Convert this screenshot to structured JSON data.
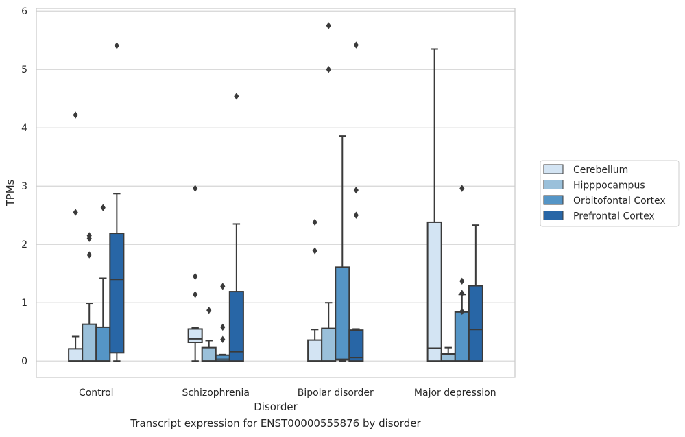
{
  "chart_data": {
    "type": "boxplot",
    "title": "",
    "caption": "Transcript expression for ENST00000555876 by disorder",
    "xlabel": "Disorder",
    "ylabel": "TPMs",
    "ylim": [
      -0.28,
      6.05
    ],
    "yticks": [
      0,
      1,
      2,
      3,
      4,
      5,
      6
    ],
    "grid": true,
    "legend_position": "right",
    "categories": [
      "Control",
      "Schizophrenia",
      "Bipolar disorder",
      "Major depression"
    ],
    "series": [
      {
        "name": "Cerebellum",
        "color": "#d3e4f3",
        "boxes": [
          {
            "whisker_low": 0,
            "q1": 0,
            "median": 0,
            "q3": 0.21,
            "whisker_high": 0.42,
            "outliers": [
              2.55,
              4.22
            ]
          },
          {
            "whisker_low": 0,
            "q1": 0.32,
            "median": 0.38,
            "q3": 0.55,
            "whisker_high": 0.57,
            "outliers": [
              1.14,
              1.45,
              2.96
            ]
          },
          {
            "whisker_low": 0,
            "q1": 0,
            "median": 0,
            "q3": 0.36,
            "whisker_high": 0.54,
            "outliers": [
              1.89,
              2.38
            ]
          },
          {
            "whisker_low": 0,
            "q1": 0,
            "median": 0.22,
            "q3": 2.38,
            "whisker_high": 5.35,
            "outliers": []
          }
        ]
      },
      {
        "name": "Hipppocampus",
        "color": "#9ac0da",
        "boxes": [
          {
            "whisker_low": 0,
            "q1": 0,
            "median": 0,
            "q3": 0.63,
            "whisker_high": 0.99,
            "outliers": [
              1.82,
              2.1,
              2.15
            ]
          },
          {
            "whisker_low": 0,
            "q1": 0,
            "median": 0,
            "q3": 0.23,
            "whisker_high": 0.35,
            "outliers": [
              0.87
            ]
          },
          {
            "whisker_low": 0,
            "q1": 0,
            "median": 0,
            "q3": 0.56,
            "whisker_high": 1.0,
            "outliers": [
              5.0,
              5.75
            ]
          },
          {
            "whisker_low": 0,
            "q1": 0,
            "median": 0,
            "q3": 0.12,
            "whisker_high": 0.23,
            "outliers": []
          }
        ]
      },
      {
        "name": "Orbitofontal Cortex",
        "color": "#5595c6",
        "boxes": [
          {
            "whisker_low": 0,
            "q1": 0,
            "median": 0,
            "q3": 0.58,
            "whisker_high": 1.42,
            "outliers": [
              2.63
            ]
          },
          {
            "whisker_low": 0,
            "q1": 0,
            "median": 0.03,
            "q3": 0.1,
            "whisker_high": 0.11,
            "outliers": [
              0.37,
              0.58,
              1.28
            ]
          },
          {
            "whisker_low": 0,
            "q1": 0.02,
            "median": 0.03,
            "q3": 1.61,
            "whisker_high": 3.86,
            "outliers": []
          },
          {
            "whisker_low": 0,
            "q1": 0,
            "median": 0,
            "q3": 0.84,
            "whisker_high": 1.14,
            "outliers": [
              0.85,
              1.16,
              1.37,
              2.96
            ]
          }
        ]
      },
      {
        "name": "Prefrontal Cortex",
        "color": "#2866a6",
        "boxes": [
          {
            "whisker_low": 0,
            "q1": 0.14,
            "median": 1.4,
            "q3": 2.19,
            "whisker_high": 2.87,
            "outliers": [
              5.41
            ]
          },
          {
            "whisker_low": 0,
            "q1": 0,
            "median": 0.16,
            "q3": 1.19,
            "whisker_high": 2.35,
            "outliers": [
              4.54
            ]
          },
          {
            "whisker_low": 0,
            "q1": 0,
            "median": 0.06,
            "q3": 0.53,
            "whisker_high": 0.55,
            "outliers": [
              2.5,
              2.93,
              5.42
            ]
          },
          {
            "whisker_low": 0,
            "q1": 0,
            "median": 0.54,
            "q3": 1.29,
            "whisker_high": 2.33,
            "outliers": []
          }
        ]
      }
    ]
  }
}
